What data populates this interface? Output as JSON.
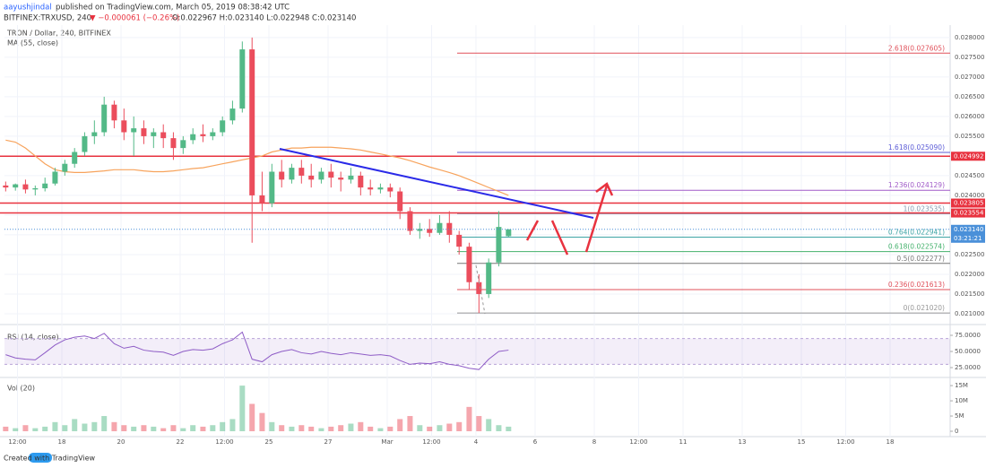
{
  "header": {
    "author": "aayushjindal",
    "published": "published on TradingView.com, March 05, 2019 08:38:42 UTC",
    "symbol": "BITFINEX:TRXUSD, 240",
    "change": "▼ −0.000061 (−0.26%)",
    "ohlc": "O:0.022967 H:0.023140 L:0.022948 C:0.023140"
  },
  "footer": "Created with TradingView",
  "chart_data": [
    {
      "type": "candlestick",
      "title": "TRON / Dollar, 240, BITFINEX",
      "up_color": "#53b987",
      "down_color": "#eb4d5c",
      "x": [
        16.1,
        16.43,
        16.77,
        17.1,
        17.43,
        17.77,
        18.1,
        18.43,
        18.77,
        19.1,
        19.43,
        19.77,
        20.1,
        20.43,
        20.77,
        21.1,
        21.43,
        21.77,
        22.1,
        22.43,
        22.77,
        23.1,
        23.43,
        23.77,
        24.1,
        24.43,
        24.77,
        25.1,
        25.43,
        25.77,
        26.1,
        26.43,
        26.77,
        27.1,
        27.43,
        27.77,
        28.1,
        28.43,
        28.77,
        29.1,
        29.43,
        29.77,
        30.1,
        30.43,
        30.77,
        31.1,
        31.43,
        31.77,
        32.1,
        32.43,
        32.77,
        33.1
      ],
      "open": [
        0.02425,
        0.0242,
        0.02428,
        0.02415,
        0.02418,
        0.0243,
        0.0246,
        0.0248,
        0.0251,
        0.0255,
        0.0256,
        0.0263,
        0.0259,
        0.0256,
        0.0257,
        0.0255,
        0.0256,
        0.02545,
        0.0252,
        0.0254,
        0.02555,
        0.0255,
        0.0256,
        0.0259,
        0.0262,
        0.0277,
        0.024,
        0.0238,
        0.0246,
        0.0244,
        0.0247,
        0.0245,
        0.0244,
        0.0246,
        0.02445,
        0.0244,
        0.0245,
        0.0242,
        0.02415,
        0.0242,
        0.0241,
        0.0236,
        0.0231,
        0.02315,
        0.02305,
        0.0233,
        0.023,
        0.0227,
        0.0218,
        0.0215,
        0.0223,
        0.022967
      ],
      "high": [
        0.02435,
        0.0243,
        0.0244,
        0.02425,
        0.02445,
        0.0247,
        0.0249,
        0.0252,
        0.0256,
        0.0259,
        0.0265,
        0.0264,
        0.0262,
        0.026,
        0.0259,
        0.0257,
        0.0258,
        0.0256,
        0.0255,
        0.0257,
        0.0258,
        0.0257,
        0.026,
        0.0264,
        0.0279,
        0.028,
        0.0246,
        0.0248,
        0.0249,
        0.0248,
        0.0249,
        0.0248,
        0.0247,
        0.0248,
        0.0246,
        0.0247,
        0.0246,
        0.0244,
        0.0243,
        0.0243,
        0.0242,
        0.0237,
        0.0233,
        0.0234,
        0.0235,
        0.0236,
        0.0231,
        0.0228,
        0.022,
        0.0224,
        0.0236,
        0.02314
      ],
      "low": [
        0.0241,
        0.02412,
        0.02405,
        0.024,
        0.0241,
        0.02425,
        0.0245,
        0.0247,
        0.025,
        0.0253,
        0.0255,
        0.0257,
        0.0254,
        0.025,
        0.0253,
        0.0252,
        0.0252,
        0.0249,
        0.02505,
        0.0253,
        0.02535,
        0.0254,
        0.0255,
        0.0258,
        0.0261,
        0.0228,
        0.0236,
        0.0237,
        0.0242,
        0.0243,
        0.0243,
        0.0242,
        0.0243,
        0.0242,
        0.0241,
        0.0243,
        0.024,
        0.024,
        0.02405,
        0.02395,
        0.0234,
        0.023,
        0.0229,
        0.02295,
        0.023,
        0.0228,
        0.0225,
        0.0216,
        0.02102,
        0.0214,
        0.0222,
        0.022948
      ],
      "close": [
        0.0242,
        0.02428,
        0.02415,
        0.02418,
        0.0243,
        0.0246,
        0.0248,
        0.0251,
        0.0255,
        0.0256,
        0.0263,
        0.0259,
        0.0256,
        0.0257,
        0.0255,
        0.0256,
        0.02545,
        0.0252,
        0.0254,
        0.02555,
        0.0255,
        0.0256,
        0.0259,
        0.0262,
        0.0277,
        0.024,
        0.0238,
        0.0246,
        0.0244,
        0.0247,
        0.0245,
        0.0244,
        0.0246,
        0.02445,
        0.0244,
        0.0245,
        0.0242,
        0.02415,
        0.0242,
        0.0241,
        0.0236,
        0.0231,
        0.02315,
        0.02305,
        0.0233,
        0.023,
        0.0227,
        0.0218,
        0.0215,
        0.0223,
        0.0232,
        0.02314
      ],
      "series": [
        {
          "name": "MA (55, close)",
          "color": "#f7a35c",
          "values": [
            0.0254,
            0.02535,
            0.0252,
            0.025,
            0.0248,
            0.02465,
            0.0246,
            0.02458,
            0.02458,
            0.0246,
            0.02462,
            0.02465,
            0.02465,
            0.02465,
            0.02462,
            0.0246,
            0.0246,
            0.02462,
            0.02465,
            0.02468,
            0.0247,
            0.02475,
            0.0248,
            0.02485,
            0.0249,
            0.02495,
            0.025,
            0.0251,
            0.02515,
            0.0252,
            0.0252,
            0.02522,
            0.02522,
            0.02522,
            0.0252,
            0.02518,
            0.02515,
            0.0251,
            0.02505,
            0.025,
            0.02495,
            0.02488,
            0.0248,
            0.02472,
            0.02465,
            0.02458,
            0.0245,
            0.0244,
            0.0243,
            0.0242,
            0.0241,
            0.024
          ]
        }
      ],
      "levels": [
        {
          "value": 0.024992,
          "label": "0.024992",
          "color": "#e8323f"
        },
        {
          "value": 0.023805,
          "label": "0.023805",
          "color": "#e8323f"
        },
        {
          "value": 0.023554,
          "label": "0.023554",
          "color": "#e8323f"
        }
      ],
      "fibs": [
        {
          "value": 0.027605,
          "label": "2.618(0.027605)",
          "color": "#e0505a"
        },
        {
          "value": 0.02509,
          "label": "1.618(0.025090)",
          "color": "#5b5bd6"
        },
        {
          "value": 0.024129,
          "label": "1.236(0.024129)",
          "color": "#a05ac8"
        },
        {
          "value": 0.023535,
          "label": "1(0.023535)",
          "color": "#8a9bb0"
        },
        {
          "value": 0.022941,
          "label": "0.764(0.022941)",
          "color": "#3fa5a5"
        },
        {
          "value": 0.022574,
          "label": "0.618(0.022574)",
          "color": "#43b16b"
        },
        {
          "value": 0.022277,
          "label": "0.5(0.022277)",
          "color": "#777777"
        },
        {
          "value": 0.021613,
          "label": "0.236(0.021613)",
          "color": "#e0505a"
        },
        {
          "value": 0.02102,
          "label": "0(0.021020)",
          "color": "#999999"
        }
      ],
      "last_price": {
        "value": 0.02314,
        "label": "0.023140",
        "color": "#4a90d9"
      },
      "countdown": "03:21:21",
      "xlim": [
        16.06,
        48.03
      ],
      "xticks": [
        {
          "value": 16.5,
          "label": "12:00"
        },
        18,
        20,
        22,
        {
          "value": 23.5,
          "label": "12:00"
        },
        25,
        27,
        {
          "value": 29,
          "label": "Mar"
        },
        {
          "value": 30.5,
          "label": "12:00"
        },
        {
          "value": 32,
          "label": "4"
        },
        {
          "value": 34,
          "label": "6"
        },
        {
          "value": 36,
          "label": "8"
        },
        {
          "value": 37.5,
          "label": "12:00"
        },
        {
          "value": 39,
          "label": "11"
        },
        {
          "value": 41,
          "label": "13"
        },
        {
          "value": 43,
          "label": "15"
        },
        {
          "value": 44.5,
          "label": "12:00"
        },
        {
          "value": 46,
          "label": "18"
        }
      ],
      "ylim": [
        0.02084,
        0.02827
      ],
      "yticks": [
        {
          "value": 0.021,
          "label": "0.021000"
        },
        {
          "value": 0.0215,
          "label": "0.021500"
        },
        {
          "value": 0.022,
          "label": "0.022000"
        },
        {
          "value": 0.0225,
          "label": "0.022500"
        },
        {
          "value": 0.023,
          "label": "0.023000"
        },
        {
          "value": 0.0235,
          "label": "0.023500"
        },
        {
          "value": 0.024,
          "label": "0.024000"
        },
        {
          "value": 0.0245,
          "label": "0.024500"
        },
        {
          "value": 0.025,
          "label": "0.025000"
        },
        {
          "value": 0.0255,
          "label": "0.025500"
        },
        {
          "value": 0.026,
          "label": "0.026000"
        },
        {
          "value": 0.0265,
          "label": "0.026500"
        },
        {
          "value": 0.027,
          "label": "0.027000"
        },
        {
          "value": 0.0275,
          "label": "0.027500"
        },
        {
          "value": 0.028,
          "label": "0.028000"
        }
      ],
      "grid": true
    },
    {
      "type": "line",
      "title": "RSI (14, close)",
      "color": "#8e5cc6",
      "values": [
        45,
        40,
        38,
        37,
        48,
        60,
        68,
        72,
        74,
        70,
        78,
        62,
        55,
        58,
        52,
        50,
        49,
        44,
        50,
        53,
        52,
        54,
        62,
        68,
        80,
        38,
        34,
        45,
        50,
        53,
        48,
        46,
        50,
        47,
        45,
        48,
        46,
        44,
        45,
        43,
        36,
        30,
        32,
        31,
        34,
        30,
        28,
        24,
        22,
        38,
        50,
        52
      ],
      "band": [
        30,
        70
      ],
      "ylim": [
        13.9,
        87.5
      ],
      "yticks": [
        {
          "value": 75,
          "label": "75.0000"
        },
        {
          "value": 50,
          "label": "50.0000"
        },
        {
          "value": 25,
          "label": "25.0000"
        }
      ]
    },
    {
      "type": "bar",
      "title": "Vol (20)",
      "values": [
        1500000,
        1000000,
        2000000,
        1000000,
        1500000,
        3000000,
        2000000,
        4000000,
        2500000,
        3000000,
        5000000,
        3000000,
        2000000,
        1500000,
        2000000,
        1500000,
        1000000,
        2000000,
        1000000,
        2000000,
        1500000,
        2000000,
        3000000,
        4000000,
        15000000,
        9000000,
        6000000,
        3000000,
        2000000,
        1500000,
        2000000,
        1500000,
        1000000,
        1500000,
        2000000,
        2500000,
        3000000,
        1500000,
        1000000,
        1500000,
        4000000,
        5000000,
        2000000,
        1500000,
        2000000,
        2500000,
        3000000,
        8000000,
        5000000,
        4000000,
        2000000,
        1500000
      ],
      "ylim": [
        0,
        16800000
      ],
      "yticks": [
        {
          "value": 15000000,
          "label": "15M"
        },
        {
          "value": 10000000,
          "label": "10M"
        },
        {
          "value": 5000000,
          "label": "5M"
        },
        0
      ]
    }
  ]
}
